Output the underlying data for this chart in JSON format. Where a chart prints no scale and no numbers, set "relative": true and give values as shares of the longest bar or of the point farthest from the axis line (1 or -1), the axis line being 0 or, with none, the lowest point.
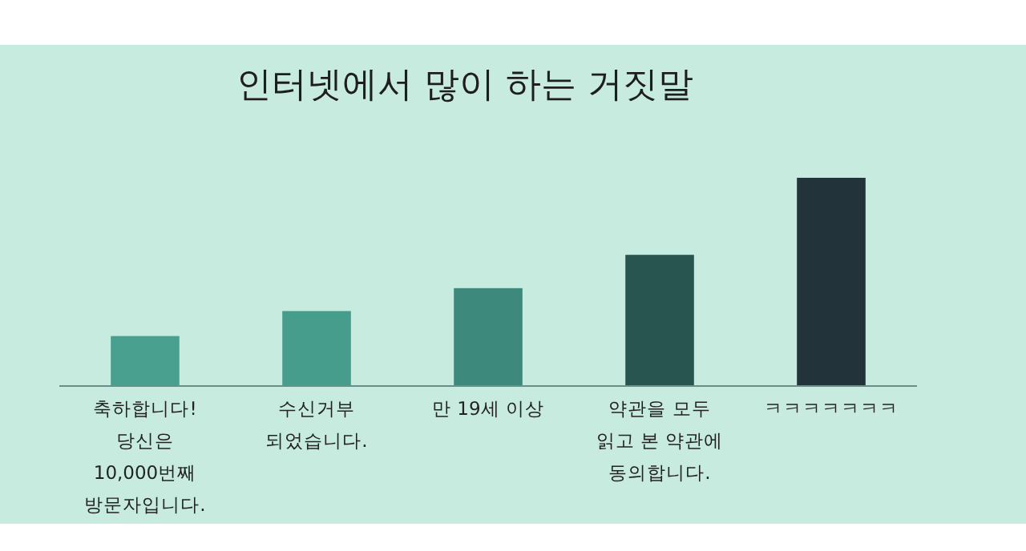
{
  "chart_data": {
    "type": "bar",
    "title": "인터넷에서 많이 하는 거짓말",
    "relative": true,
    "categories": [
      "축하합니다!\n당신은\n10,000번째\n방문자입니다.",
      "수신거부\n되었습니다.",
      "만 19세 이상",
      "약관을 모두\n읽고 본 약관에\n동의합니다.",
      "ㅋㅋㅋㅋㅋㅋㅋ"
    ],
    "values": [
      0.24,
      0.36,
      0.47,
      0.63,
      1
    ],
    "colors": [
      "#4aa08f",
      "#479d8c",
      "#3d8a7d",
      "#285550",
      "#22333a"
    ]
  }
}
